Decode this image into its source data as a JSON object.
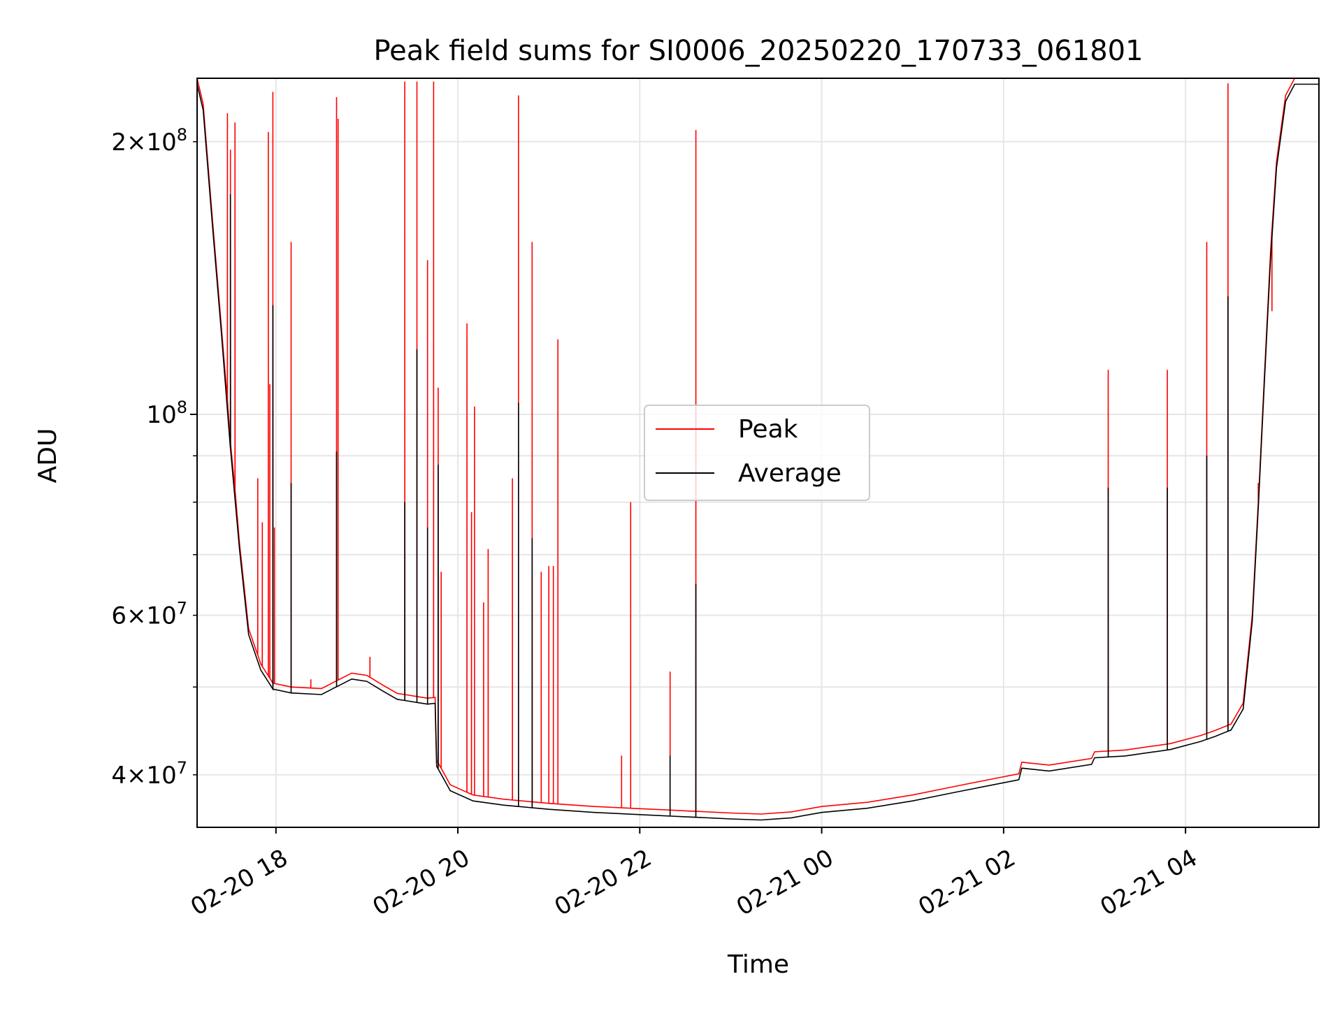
{
  "chart_data": {
    "type": "line",
    "title": "Peak field sums for SI0006_20250220_170733_061801",
    "xlabel": "Time",
    "ylabel": "ADU",
    "x_axis": {
      "type": "datetime",
      "range": [
        "2025-02-20 17:08",
        "2025-02-21 05:28"
      ],
      "ticks": [
        {
          "value": "2025-02-20 18:00",
          "label": "02-20 18"
        },
        {
          "value": "2025-02-20 20:00",
          "label": "02-20 20"
        },
        {
          "value": "2025-02-20 22:00",
          "label": "02-20 22"
        },
        {
          "value": "2025-02-21 00:00",
          "label": "02-21 00"
        },
        {
          "value": "2025-02-21 02:00",
          "label": "02-21 02"
        },
        {
          "value": "2025-02-21 04:00",
          "label": "02-21 04"
        }
      ]
    },
    "y_axis": {
      "scale": "log",
      "range": [
        35000000,
        235000000
      ],
      "major_ticks": [
        {
          "value": 100000000,
          "base": "10",
          "exp": "8",
          "mantissa": ""
        }
      ],
      "minor_labeled_ticks": [
        {
          "value": 40000000,
          "base": "10",
          "exp": "7",
          "mantissa": "4"
        },
        {
          "value": 60000000,
          "base": "10",
          "exp": "7",
          "mantissa": "6"
        },
        {
          "value": 200000000,
          "base": "10",
          "exp": "8",
          "mantissa": "2"
        }
      ],
      "minor_unlabeled_ticks": [
        50000000,
        70000000,
        80000000,
        90000000
      ]
    },
    "grid": true,
    "legend_position": "center",
    "series": [
      {
        "name": "Peak",
        "color": "#ff0000",
        "baseline": [
          [
            "2025-02-20 17:08",
            235000000
          ],
          [
            "2025-02-20 17:12",
            220000000
          ],
          [
            "2025-02-20 17:18",
            165000000
          ],
          [
            "2025-02-20 17:24",
            125000000
          ],
          [
            "2025-02-20 17:30",
            93000000
          ],
          [
            "2025-02-20 17:36",
            72000000
          ],
          [
            "2025-02-20 17:42",
            58000000
          ],
          [
            "2025-02-20 17:50",
            53000000
          ],
          [
            "2025-02-20 17:58",
            50500000
          ],
          [
            "2025-02-20 18:10",
            50000000
          ],
          [
            "2025-02-20 18:30",
            49800000
          ],
          [
            "2025-02-20 18:40",
            50800000
          ],
          [
            "2025-02-20 18:50",
            51800000
          ],
          [
            "2025-02-20 19:00",
            51500000
          ],
          [
            "2025-02-20 19:10",
            50300000
          ],
          [
            "2025-02-20 19:20",
            49200000
          ],
          [
            "2025-02-20 19:40",
            48600000
          ],
          [
            "2025-02-20 19:45",
            48700000
          ],
          [
            "2025-02-20 19:46",
            41500000
          ],
          [
            "2025-02-20 19:55",
            39000000
          ],
          [
            "2025-02-20 20:10",
            38000000
          ],
          [
            "2025-02-20 20:30",
            37600000
          ],
          [
            "2025-02-20 21:00",
            37200000
          ],
          [
            "2025-02-20 21:30",
            36900000
          ],
          [
            "2025-02-20 22:00",
            36700000
          ],
          [
            "2025-02-20 22:30",
            36500000
          ],
          [
            "2025-02-20 23:00",
            36300000
          ],
          [
            "2025-02-20 23:20",
            36200000
          ],
          [
            "2025-02-20 23:40",
            36400000
          ],
          [
            "2025-02-21 00:00",
            36900000
          ],
          [
            "2025-02-21 00:30",
            37300000
          ],
          [
            "2025-02-21 01:00",
            38000000
          ],
          [
            "2025-02-21 01:30",
            38900000
          ],
          [
            "2025-02-21 02:00",
            39800000
          ],
          [
            "2025-02-21 02:10",
            40100000
          ],
          [
            "2025-02-21 02:12",
            41300000
          ],
          [
            "2025-02-21 02:30",
            41000000
          ],
          [
            "2025-02-21 02:58",
            41700000
          ],
          [
            "2025-02-21 03:00",
            42400000
          ],
          [
            "2025-02-21 03:20",
            42600000
          ],
          [
            "2025-02-21 03:50",
            43300000
          ],
          [
            "2025-02-21 04:10",
            44200000
          ],
          [
            "2025-02-21 04:20",
            44800000
          ],
          [
            "2025-02-21 04:30",
            45500000
          ],
          [
            "2025-02-21 04:38",
            48000000
          ],
          [
            "2025-02-21 04:44",
            60000000
          ],
          [
            "2025-02-21 04:48",
            80000000
          ],
          [
            "2025-02-21 04:52",
            110000000
          ],
          [
            "2025-02-21 04:56",
            150000000
          ],
          [
            "2025-02-21 05:00",
            190000000
          ],
          [
            "2025-02-21 05:06",
            225000000
          ],
          [
            "2025-02-21 05:12",
            235000000
          ],
          [
            "2025-02-21 05:28",
            235000000
          ]
        ],
        "spikes": [
          [
            "2025-02-20 17:28",
            215000000
          ],
          [
            "2025-02-20 17:30",
            196000000
          ],
          [
            "2025-02-20 17:33",
            210000000
          ],
          [
            "2025-02-20 17:48",
            85000000
          ],
          [
            "2025-02-20 17:51",
            76000000
          ],
          [
            "2025-02-20 17:56",
            108000000
          ],
          [
            "2025-02-20 17:59",
            75000000
          ],
          [
            "2025-02-20 17:55",
            205000000
          ],
          [
            "2025-02-20 17:58",
            227000000
          ],
          [
            "2025-02-20 18:10",
            155000000
          ],
          [
            "2025-02-20 18:40",
            53000000
          ],
          [
            "2025-02-20 18:41",
            54000000
          ],
          [
            "2025-02-20 19:02",
            54000000
          ],
          [
            "2025-02-20 18:23",
            51000000
          ],
          [
            "2025-02-20 18:40",
            224000000
          ],
          [
            "2025-02-20 18:41",
            212000000
          ],
          [
            "2025-02-20 19:25",
            233000000
          ],
          [
            "2025-02-20 19:33",
            233000000
          ],
          [
            "2025-02-20 19:40",
            148000000
          ],
          [
            "2025-02-20 19:44",
            233000000
          ],
          [
            "2025-02-20 19:47",
            107000000
          ],
          [
            "2025-02-20 19:49",
            67000000
          ],
          [
            "2025-02-20 20:06",
            126000000
          ],
          [
            "2025-02-20 20:09",
            78000000
          ],
          [
            "2025-02-20 20:11",
            102000000
          ],
          [
            "2025-02-20 20:17",
            62000000
          ],
          [
            "2025-02-20 20:20",
            71000000
          ],
          [
            "2025-02-20 20:36",
            85000000
          ],
          [
            "2025-02-20 20:40",
            225000000
          ],
          [
            "2025-02-20 20:49",
            155000000
          ],
          [
            "2025-02-20 20:55",
            67000000
          ],
          [
            "2025-02-20 21:00",
            68000000
          ],
          [
            "2025-02-20 21:03",
            68000000
          ],
          [
            "2025-02-20 21:06",
            121000000
          ],
          [
            "2025-02-20 21:48",
            42000000
          ],
          [
            "2025-02-20 21:54",
            80000000
          ],
          [
            "2025-02-20 22:20",
            52000000
          ],
          [
            "2025-02-20 22:37",
            206000000
          ],
          [
            "2025-02-21 03:09",
            112000000
          ],
          [
            "2025-02-21 03:48",
            112000000
          ],
          [
            "2025-02-21 04:14",
            155000000
          ],
          [
            "2025-02-21 04:28",
            232000000
          ],
          [
            "2025-02-21 04:48",
            84000000
          ],
          [
            "2025-02-21 04:57",
            130000000
          ]
        ]
      },
      {
        "name": "Average",
        "color": "#000000",
        "baseline_offset_ratio": 0.985,
        "spikes": [
          [
            "2025-02-20 17:30",
            175000000
          ],
          [
            "2025-02-20 17:58",
            132000000
          ],
          [
            "2025-02-20 18:10",
            84000000
          ],
          [
            "2025-02-20 18:40",
            91000000
          ],
          [
            "2025-02-20 19:25",
            80000000
          ],
          [
            "2025-02-20 19:33",
            118000000
          ],
          [
            "2025-02-20 19:40",
            75000000
          ],
          [
            "2025-02-20 19:47",
            88000000
          ],
          [
            "2025-02-20 20:40",
            103000000
          ],
          [
            "2025-02-20 20:49",
            73000000
          ],
          [
            "2025-02-20 22:37",
            65000000
          ],
          [
            "2025-02-20 22:20",
            42000000
          ],
          [
            "2025-02-21 03:09",
            83000000
          ],
          [
            "2025-02-21 03:48",
            83000000
          ],
          [
            "2025-02-21 04:14",
            90000000
          ],
          [
            "2025-02-21 04:28",
            135000000
          ]
        ]
      }
    ]
  }
}
